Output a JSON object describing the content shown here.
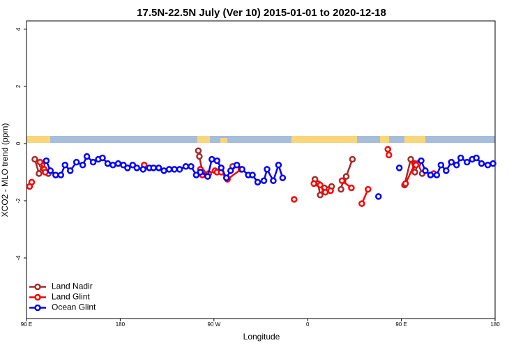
{
  "chart_data": {
    "type": "line",
    "title": "17.5N-22.5N July (Ver 10)   2015-01-01 to 2020-12-18",
    "x_label": "Longitude",
    "y_label": "XCO2 - MLO trend (ppm)",
    "xlim": [
      90,
      540
    ],
    "ylim": [
      -6.12,
      4.29
    ],
    "xticks": [
      {
        "value": 90,
        "label": "90 E"
      },
      180,
      {
        "value": 270,
        "label": "90 W"
      },
      {
        "value": 360,
        "label": "0"
      },
      {
        "value": 450,
        "label": "90 E"
      },
      {
        "value": 540,
        "label": "180"
      }
    ],
    "yticks": [
      -4,
      -2,
      0,
      2,
      4
    ],
    "legend": "bottomleft",
    "series": [
      {
        "name": "Land Nadir",
        "color": "#a52a2a",
        "x": [
          98,
          102,
          105,
          111,
          null,
          255,
          256,
          259,
          null,
          288,
          null,
          367,
          370,
          372,
          376,
          383,
          null,
          392,
          394,
          397,
          403,
          null,
          453,
          459,
          463,
          466,
          470
        ],
        "values": [
          -0.55,
          -1.05,
          -0.75,
          -1.05,
          null,
          -0.25,
          -0.45,
          -1.0,
          null,
          -0.8,
          null,
          -1.25,
          -1.4,
          -1.8,
          -1.55,
          -1.5,
          null,
          -1.6,
          -1.3,
          -1.15,
          -0.55,
          null,
          -1.45,
          -0.55,
          -1.0,
          -0.7,
          -1.05
        ]
      },
      {
        "name": "Land Glint",
        "color": "#ff0000",
        "x": [
          93,
          95,
          null,
          103,
          107,
          108,
          null,
          203,
          null,
          257,
          259,
          265,
          271,
          273,
          277,
          283,
          296,
          null,
          347,
          null,
          366,
          372,
          377,
          382,
          null,
          393,
          402,
          null,
          412,
          418,
          null,
          437,
          438,
          null,
          454,
          463,
          464,
          null,
          481
        ],
        "values": [
          -1.5,
          -1.35,
          null,
          -0.65,
          -0.9,
          -1.0,
          null,
          -0.75,
          null,
          -0.9,
          -1.1,
          -1.05,
          -0.95,
          -1.0,
          -1.0,
          -1.25,
          -0.9,
          null,
          -1.95,
          null,
          -1.4,
          -1.45,
          -1.7,
          -1.65,
          null,
          -1.3,
          -1.55,
          null,
          -2.1,
          -1.6,
          null,
          -0.2,
          -0.4,
          null,
          -1.4,
          -0.7,
          -0.75,
          null,
          -1.05
        ]
      },
      {
        "name": "Ocean Glint",
        "color": "#0000ff",
        "x": [
          109,
          113,
          118,
          123,
          127,
          132,
          138,
          144,
          148,
          154,
          159,
          163,
          168,
          173,
          178,
          183,
          187,
          192,
          196,
          202,
          208,
          212,
          217,
          222,
          227,
          232,
          237,
          243,
          248,
          253,
          257,
          264,
          268,
          273,
          277,
          282,
          286,
          292,
          297,
          303,
          307,
          312,
          318,
          321,
          327,
          332,
          336,
          null,
          428,
          null,
          448,
          null,
          469,
          473,
          478,
          484,
          488,
          493,
          498,
          503,
          507,
          513,
          518,
          522,
          527,
          533,
          538
        ],
        "values": [
          -0.6,
          -0.95,
          -1.1,
          -1.1,
          -0.75,
          -0.95,
          -0.65,
          -0.75,
          -0.45,
          -0.65,
          -0.55,
          -0.5,
          -0.7,
          -0.75,
          -0.7,
          -0.75,
          -0.85,
          -0.75,
          -0.85,
          -0.9,
          -0.85,
          -0.85,
          -0.85,
          -0.95,
          -0.9,
          -0.9,
          -0.9,
          -0.8,
          -0.8,
          -1.1,
          -1.0,
          -1.15,
          -0.55,
          -0.6,
          -0.85,
          -1.2,
          -0.95,
          -0.75,
          -0.9,
          -1.1,
          -1.1,
          -1.35,
          -1.3,
          -0.9,
          -1.3,
          -0.75,
          -1.2,
          null,
          -1.85,
          null,
          -0.85,
          null,
          -0.6,
          -0.95,
          -1.1,
          -1.1,
          -0.75,
          -0.95,
          -0.65,
          -0.75,
          -0.5,
          -0.65,
          -0.55,
          -0.5,
          -0.7,
          -0.75,
          -0.7
        ]
      }
    ]
  }
}
